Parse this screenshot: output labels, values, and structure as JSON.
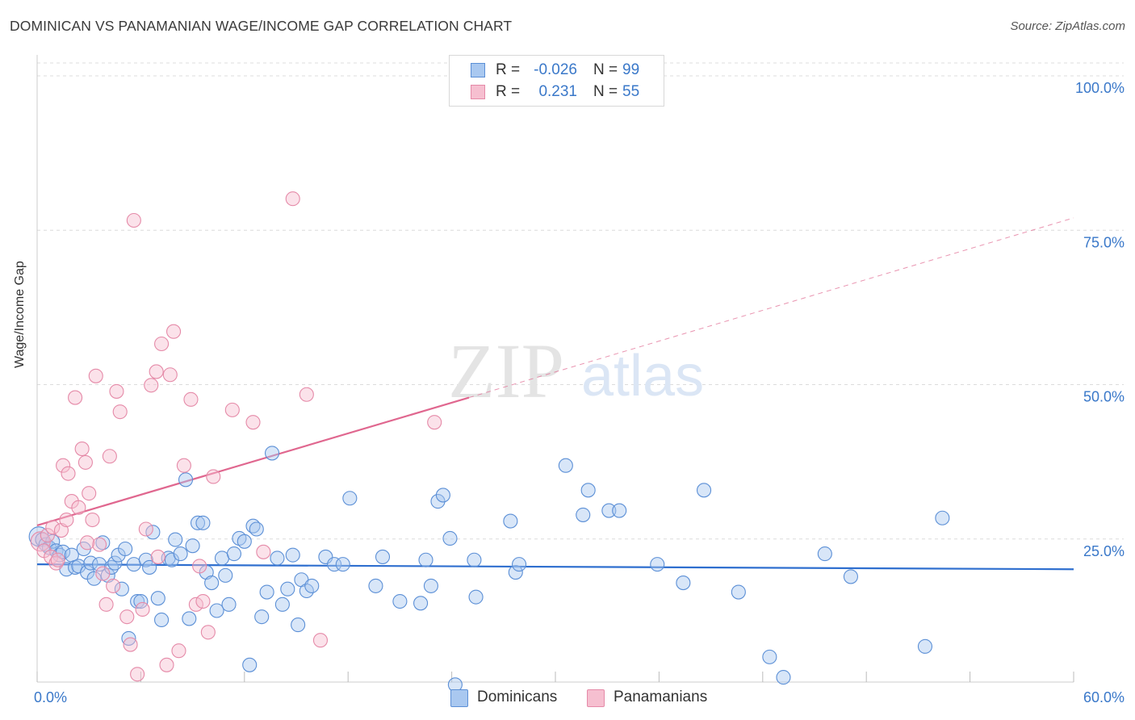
{
  "title": "DOMINICAN VS PANAMANIAN WAGE/INCOME GAP CORRELATION CHART",
  "source": "Source: ZipAtlas.com",
  "watermark": {
    "zip": "ZIP",
    "atlas": "atlas"
  },
  "colors": {
    "blue_fill": "#a9c8f0",
    "blue_stroke": "#5b8fd6",
    "blue_line": "#2f6fcf",
    "pink_fill": "#f6bfd0",
    "pink_stroke": "#e58aa8",
    "pink_line": "#e0678f",
    "grid": "#dcdcdc",
    "axis_value": "#3a78c9"
  },
  "legend": {
    "rows": [
      {
        "r_label": "R =",
        "r_value": "-0.026",
        "n_label": "N =",
        "n_value": "99"
      },
      {
        "r_label": "R =",
        "r_value": "0.231",
        "n_label": "N =",
        "n_value": "55"
      }
    ]
  },
  "bottom_legend": [
    {
      "label": "Dominicans"
    },
    {
      "label": "Panamanians"
    }
  ],
  "chart_data": {
    "type": "scatter",
    "title": "DOMINICAN VS PANAMANIAN WAGE/INCOME GAP CORRELATION CHART",
    "xlabel": "",
    "ylabel": "Wage/Income Gap",
    "xlim": [
      0,
      60
    ],
    "ylim": [
      0,
      100
    ],
    "x_tick_labels": [
      "0.0%",
      "60.0%"
    ],
    "y_tick_labels": [
      "25.0%",
      "50.0%",
      "75.0%",
      "100.0%"
    ],
    "y_ticks": [
      25,
      50,
      75,
      100
    ],
    "series": [
      {
        "name": "Dominicans",
        "r": -0.026,
        "n": 99,
        "trend": {
          "x0": 0,
          "y0": 20.9,
          "x1": 60,
          "y1": 20.1
        },
        "points": [
          [
            0.1,
            25.4
          ],
          [
            0.3,
            24.9
          ],
          [
            0.5,
            24.1
          ],
          [
            0.7,
            23.6
          ],
          [
            0.9,
            24.6
          ],
          [
            1.1,
            23.1
          ],
          [
            1.3,
            22.4
          ],
          [
            1.5,
            22.9
          ],
          [
            1.7,
            20.1
          ],
          [
            2.0,
            22.4
          ],
          [
            2.2,
            20.4
          ],
          [
            2.4,
            20.6
          ],
          [
            2.7,
            23.4
          ],
          [
            2.9,
            19.6
          ],
          [
            3.1,
            21.1
          ],
          [
            3.3,
            18.6
          ],
          [
            3.6,
            20.9
          ],
          [
            3.8,
            24.4
          ],
          [
            4.1,
            19.1
          ],
          [
            4.3,
            20.4
          ],
          [
            4.5,
            21.1
          ],
          [
            4.7,
            22.4
          ],
          [
            4.9,
            16.9
          ],
          [
            5.1,
            23.4
          ],
          [
            5.3,
            8.9
          ],
          [
            5.6,
            20.9
          ],
          [
            5.8,
            14.9
          ],
          [
            6.0,
            14.9
          ],
          [
            6.3,
            21.6
          ],
          [
            6.5,
            20.4
          ],
          [
            6.7,
            26.1
          ],
          [
            7.0,
            15.4
          ],
          [
            7.2,
            11.9
          ],
          [
            7.6,
            21.9
          ],
          [
            7.8,
            21.6
          ],
          [
            8.0,
            24.9
          ],
          [
            8.3,
            22.6
          ],
          [
            8.6,
            34.6
          ],
          [
            8.8,
            12.1
          ],
          [
            9.0,
            23.9
          ],
          [
            9.3,
            27.6
          ],
          [
            9.6,
            27.6
          ],
          [
            9.8,
            19.6
          ],
          [
            10.1,
            17.9
          ],
          [
            10.4,
            13.4
          ],
          [
            10.7,
            21.9
          ],
          [
            10.9,
            19.1
          ],
          [
            11.1,
            14.4
          ],
          [
            11.4,
            22.6
          ],
          [
            11.7,
            25.1
          ],
          [
            12.0,
            24.6
          ],
          [
            12.3,
            4.6
          ],
          [
            12.5,
            27.1
          ],
          [
            12.7,
            26.6
          ],
          [
            13.0,
            12.4
          ],
          [
            13.3,
            16.4
          ],
          [
            13.6,
            38.9
          ],
          [
            13.9,
            21.9
          ],
          [
            14.2,
            14.4
          ],
          [
            14.5,
            16.9
          ],
          [
            14.8,
            22.4
          ],
          [
            15.1,
            11.1
          ],
          [
            15.3,
            18.4
          ],
          [
            15.6,
            16.6
          ],
          [
            15.9,
            17.4
          ],
          [
            16.7,
            22.1
          ],
          [
            17.2,
            20.9
          ],
          [
            17.7,
            20.9
          ],
          [
            18.1,
            31.6
          ],
          [
            19.6,
            17.4
          ],
          [
            20.0,
            22.1
          ],
          [
            21.0,
            14.9
          ],
          [
            22.2,
            14.6
          ],
          [
            22.5,
            21.6
          ],
          [
            22.8,
            17.4
          ],
          [
            23.2,
            31.1
          ],
          [
            23.5,
            32.1
          ],
          [
            23.9,
            25.1
          ],
          [
            24.2,
            1.4
          ],
          [
            25.3,
            21.6
          ],
          [
            25.4,
            15.6
          ],
          [
            27.4,
            27.9
          ],
          [
            27.7,
            19.6
          ],
          [
            27.9,
            20.9
          ],
          [
            30.6,
            36.9
          ],
          [
            31.6,
            28.9
          ],
          [
            31.9,
            32.9
          ],
          [
            33.1,
            29.6
          ],
          [
            33.7,
            29.6
          ],
          [
            35.9,
            20.9
          ],
          [
            37.4,
            17.9
          ],
          [
            38.6,
            32.9
          ],
          [
            40.6,
            16.4
          ],
          [
            42.4,
            5.9
          ],
          [
            43.2,
            2.6
          ],
          [
            45.6,
            22.6
          ],
          [
            47.1,
            18.9
          ],
          [
            51.4,
            7.6
          ],
          [
            52.4,
            28.4
          ]
        ]
      },
      {
        "name": "Panamanians",
        "r": 0.231,
        "n": 55,
        "trend": {
          "x0": 0,
          "y0": 27.2,
          "x1": 25,
          "y1": 47.9,
          "dash_x1": 60,
          "dash_y1": 77.0
        },
        "points": [
          [
            0.2,
            24.6
          ],
          [
            0.4,
            23.1
          ],
          [
            0.6,
            25.6
          ],
          [
            0.8,
            22.1
          ],
          [
            0.9,
            26.9
          ],
          [
            1.1,
            21.1
          ],
          [
            1.2,
            21.6
          ],
          [
            1.4,
            26.4
          ],
          [
            1.5,
            36.9
          ],
          [
            1.7,
            28.1
          ],
          [
            1.8,
            35.6
          ],
          [
            2.0,
            31.1
          ],
          [
            2.2,
            47.9
          ],
          [
            2.4,
            30.1
          ],
          [
            2.6,
            39.6
          ],
          [
            2.8,
            37.4
          ],
          [
            3.0,
            32.4
          ],
          [
            3.2,
            28.1
          ],
          [
            3.4,
            51.4
          ],
          [
            3.6,
            24.1
          ],
          [
            3.8,
            19.4
          ],
          [
            4.0,
            14.4
          ],
          [
            4.2,
            38.4
          ],
          [
            4.4,
            17.4
          ],
          [
            4.6,
            48.9
          ],
          [
            4.8,
            45.6
          ],
          [
            5.2,
            12.4
          ],
          [
            5.4,
            7.9
          ],
          [
            5.6,
            76.6
          ],
          [
            5.8,
            3.1
          ],
          [
            6.1,
            13.6
          ],
          [
            6.3,
            26.6
          ],
          [
            6.6,
            49.9
          ],
          [
            6.9,
            52.1
          ],
          [
            7.2,
            56.6
          ],
          [
            7.5,
            4.6
          ],
          [
            7.7,
            51.6
          ],
          [
            7.9,
            58.6
          ],
          [
            8.2,
            6.9
          ],
          [
            8.5,
            36.9
          ],
          [
            8.9,
            47.6
          ],
          [
            9.2,
            14.4
          ],
          [
            9.6,
            14.9
          ],
          [
            9.9,
            9.9
          ],
          [
            10.2,
            35.1
          ],
          [
            11.3,
            45.9
          ],
          [
            12.5,
            43.9
          ],
          [
            13.1,
            22.9
          ],
          [
            14.8,
            80.1
          ],
          [
            15.6,
            48.4
          ],
          [
            16.4,
            8.6
          ],
          [
            23.0,
            43.9
          ],
          [
            9.4,
            20.6
          ],
          [
            7.0,
            22.1
          ],
          [
            2.9,
            24.4
          ]
        ]
      }
    ]
  }
}
